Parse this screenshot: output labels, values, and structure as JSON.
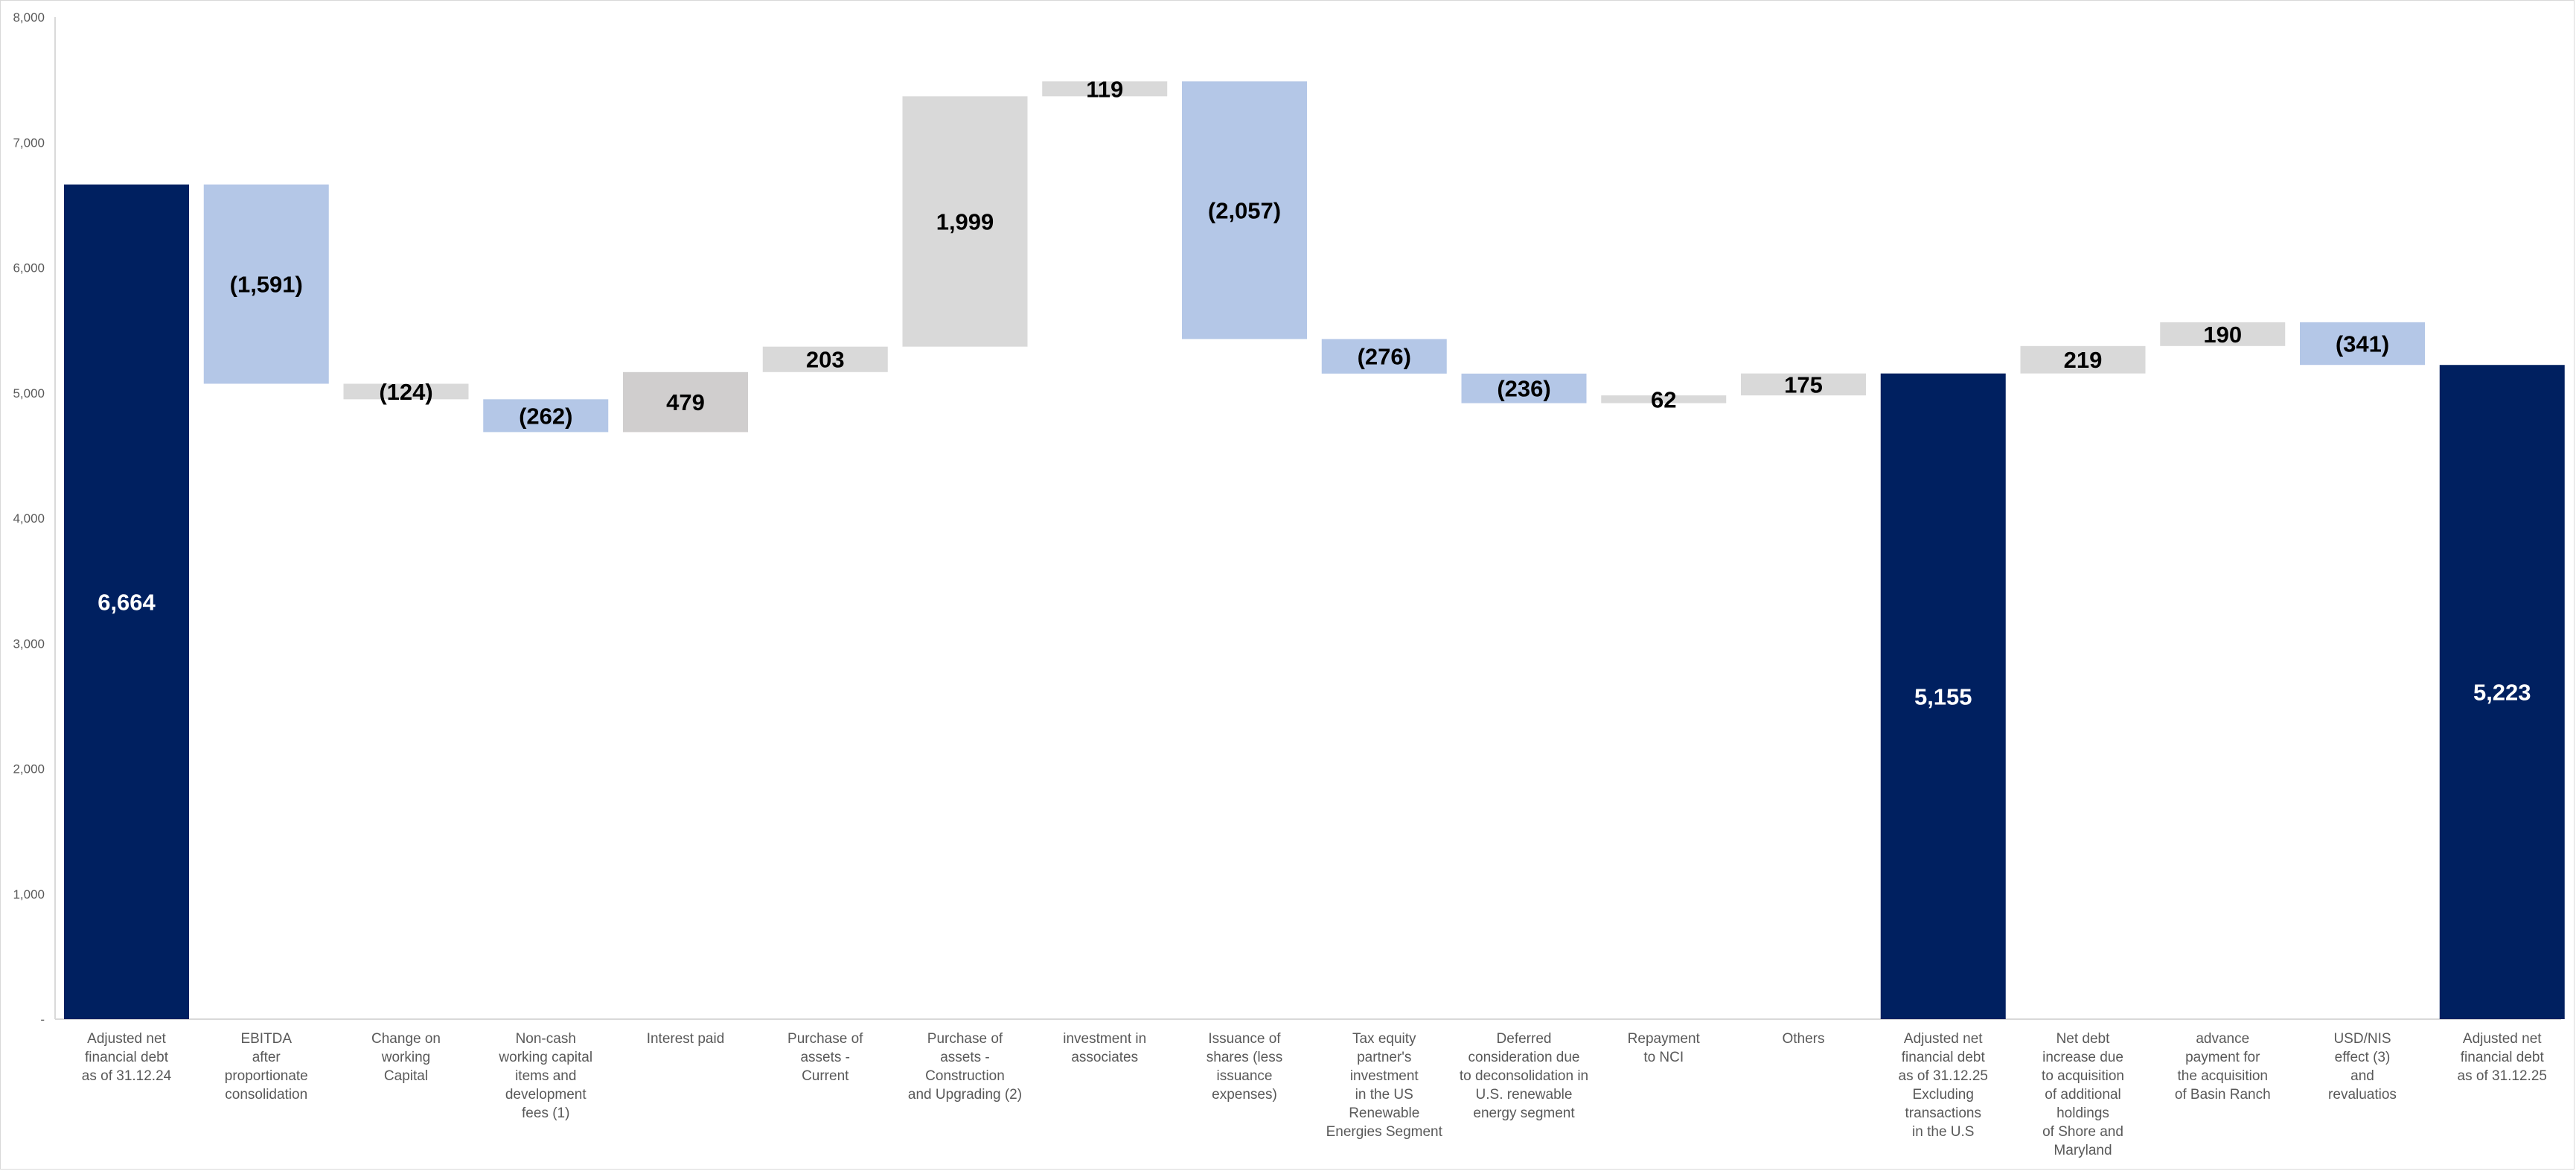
{
  "chart_data": {
    "type": "waterfall",
    "title": "",
    "ylim": [
      0,
      8000
    ],
    "yticks": [
      {
        "value": 0,
        "label": "-"
      },
      {
        "value": 1000,
        "label": "1,000"
      },
      {
        "value": 2000,
        "label": "2,000"
      },
      {
        "value": 3000,
        "label": "3,000"
      },
      {
        "value": 4000,
        "label": "4,000"
      },
      {
        "value": 5000,
        "label": "5,000"
      },
      {
        "value": 6000,
        "label": "6,000"
      },
      {
        "value": 7000,
        "label": "7,000"
      },
      {
        "value": 8000,
        "label": "8,000"
      }
    ],
    "colors": {
      "total": "#002060",
      "decrease": "#B4C7E7",
      "increase": "#D9D9D9",
      "increase_dark": "#D0CECE",
      "axis_label": "#595959",
      "data_label_dark": "#000000",
      "data_label_light": "#FFFFFF"
    },
    "bars": [
      {
        "category": [
          "Adjusted net",
          "financial debt",
          "as of 31.12.24"
        ],
        "kind": "total",
        "start": 0,
        "end": 6664,
        "label": "6,664"
      },
      {
        "category": [
          "EBITDA",
          "after",
          "proportionate",
          "consolidation"
        ],
        "kind": "decrease",
        "start": 6664,
        "end": 5073,
        "label": "(1,591)"
      },
      {
        "category": [
          "Change on",
          "working",
          "Capital"
        ],
        "kind": "decrease_gray",
        "start": 5073,
        "end": 4949,
        "label": "(124)"
      },
      {
        "category": [
          "Non-cash",
          "working capital",
          "items and",
          "development",
          "fees (1)"
        ],
        "kind": "decrease",
        "start": 4949,
        "end": 4687,
        "label": "(262)"
      },
      {
        "category": [
          "Interest paid"
        ],
        "kind": "increase_dark",
        "start": 4687,
        "end": 5166,
        "label": "479"
      },
      {
        "category": [
          "Purchase of",
          "assets -",
          "Current"
        ],
        "kind": "increase",
        "start": 5166,
        "end": 5369,
        "label": "203"
      },
      {
        "category": [
          "Purchase of",
          "assets -",
          "Construction",
          "and Upgrading (2)"
        ],
        "kind": "increase",
        "start": 5369,
        "end": 7368,
        "label": "1,999"
      },
      {
        "category": [
          "investment in",
          "associates"
        ],
        "kind": "increase",
        "start": 7368,
        "end": 7487,
        "label": "119"
      },
      {
        "category": [
          "Issuance of",
          "shares (less",
          "issuance",
          "expenses)"
        ],
        "kind": "decrease",
        "start": 7487,
        "end": 5430,
        "label": "(2,057)"
      },
      {
        "category": [
          "Tax equity",
          "partner's",
          "investment",
          "in the US",
          "Renewable",
          "Energies Segment"
        ],
        "kind": "decrease",
        "start": 5430,
        "end": 5154,
        "label": "(276)"
      },
      {
        "category": [
          "Deferred",
          "consideration due",
          "to deconsolidation in",
          "U.S. renewable",
          "energy segment"
        ],
        "kind": "decrease",
        "start": 5154,
        "end": 4918,
        "label": "(236)"
      },
      {
        "category": [
          "Repayment",
          "to NCI"
        ],
        "kind": "increase",
        "start": 4918,
        "end": 4980,
        "label": "62"
      },
      {
        "category": [
          "Others"
        ],
        "kind": "increase",
        "start": 4980,
        "end": 5155,
        "label": "175"
      },
      {
        "category": [
          "Adjusted net",
          "financial debt",
          "as of 31.12.25",
          "Excluding",
          "transactions",
          "in the U.S"
        ],
        "kind": "total",
        "start": 0,
        "end": 5155,
        "label": "5,155"
      },
      {
        "category": [
          "Net debt",
          "increase due",
          "to acquisition",
          "of additional",
          "holdings",
          "of Shore and",
          "Maryland"
        ],
        "kind": "increase",
        "start": 5155,
        "end": 5374,
        "label": "219"
      },
      {
        "category": [
          "advance",
          "payment for",
          "the acquisition",
          "of Basin Ranch"
        ],
        "kind": "increase",
        "start": 5374,
        "end": 5564,
        "label": "190"
      },
      {
        "category": [
          "USD/NIS",
          "effect (3)",
          "and",
          "revaluatios"
        ],
        "kind": "decrease",
        "start": 5564,
        "end": 5223,
        "label": "(341)"
      },
      {
        "category": [
          "Adjusted net",
          "financial debt",
          "as of 31.12.25"
        ],
        "kind": "total",
        "start": 0,
        "end": 5223,
        "label": "5,223"
      }
    ]
  }
}
